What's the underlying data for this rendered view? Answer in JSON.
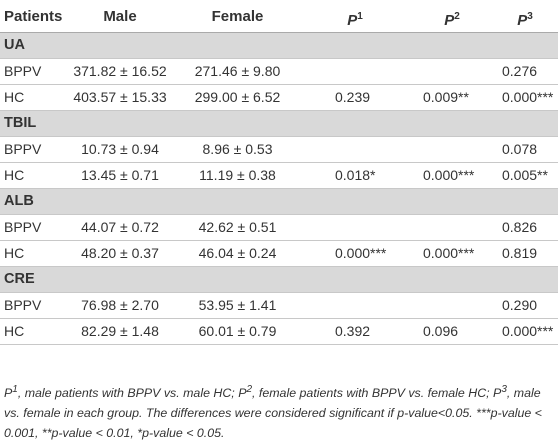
{
  "table": {
    "header": [
      {
        "text": "Patients"
      },
      {
        "text": "Male"
      },
      {
        "text": "Female"
      },
      {
        "text": "P",
        "sup": "1"
      },
      {
        "text": "P",
        "sup": "2"
      },
      {
        "text": "P",
        "sup": "3"
      }
    ],
    "sections": [
      {
        "name": "UA",
        "rows": [
          [
            "BPPV",
            "371.82 ± 16.52",
            "271.46 ± 9.80",
            null,
            null,
            "0.276"
          ],
          [
            "HC",
            "403.57 ± 15.33",
            "299.00 ± 6.52",
            "0.239",
            "0.009**",
            "0.000***"
          ]
        ]
      },
      {
        "name": "TBIL",
        "rows": [
          [
            "BPPV",
            "10.73 ± 0.94",
            "8.96 ± 0.53",
            null,
            null,
            "0.078"
          ],
          [
            "HC",
            "13.45 ± 0.71",
            "11.19 ± 0.38",
            "0.018*",
            "0.000***",
            "0.005**"
          ]
        ]
      },
      {
        "name": "ALB",
        "rows": [
          [
            "BPPV",
            "44.07 ± 0.72",
            "42.62 ± 0.51",
            null,
            null,
            "0.826"
          ],
          [
            "HC",
            "48.20 ± 0.37",
            "46.04 ± 0.24",
            "0.000***",
            "0.000***",
            "0.819"
          ]
        ]
      },
      {
        "name": "CRE",
        "rows": [
          [
            "BPPV",
            "76.98 ± 2.70",
            "53.95 ± 1.41",
            null,
            null,
            "0.290"
          ],
          [
            "HC",
            "82.29 ± 1.48",
            "60.01 ± 0.79",
            "0.392",
            "0.096",
            "0.000***"
          ]
        ]
      }
    ]
  },
  "footnote": [
    {
      "text": "P"
    },
    {
      "sup": "1"
    },
    {
      "text": ", male patients with BPPV vs. male HC; "
    },
    {
      "text": "P"
    },
    {
      "sup": "2"
    },
    {
      "text": ", female patients with BPPV vs. female HC; "
    },
    {
      "text": "P"
    },
    {
      "sup": "3"
    },
    {
      "text": ", male vs. female in each group. The differences were considered significant if p-value<0.05. ***p-value < 0.001, **p-value < 0.01, *p-value < 0.05."
    }
  ]
}
